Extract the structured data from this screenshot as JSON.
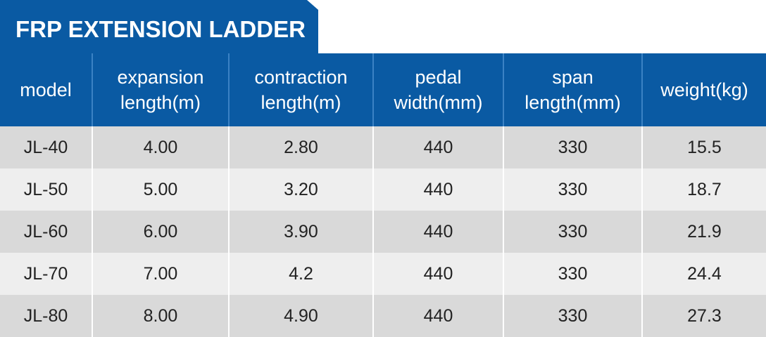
{
  "title": "FRP EXTENSION LADDER",
  "colors": {
    "header_bg": "#0a5aa3",
    "header_text": "#ffffff",
    "row_odd": "#d9d9d9",
    "row_even": "#eeeeee"
  },
  "columns": [
    {
      "lines": [
        "model"
      ]
    },
    {
      "lines": [
        "expansion",
        "length(m)"
      ]
    },
    {
      "lines": [
        "contraction",
        "length(m)"
      ]
    },
    {
      "lines": [
        "pedal",
        "width(mm)"
      ]
    },
    {
      "lines": [
        "span",
        "length(mm)"
      ]
    },
    {
      "lines": [
        "weight(kg)"
      ]
    }
  ],
  "rows": [
    [
      "JL-40",
      "4.00",
      "2.80",
      "440",
      "330",
      "15.5"
    ],
    [
      "JL-50",
      "5.00",
      "3.20",
      "440",
      "330",
      "18.7"
    ],
    [
      "JL-60",
      "6.00",
      "3.90",
      "440",
      "330",
      "21.9"
    ],
    [
      "JL-70",
      "7.00",
      "4.2",
      "440",
      "330",
      "24.4"
    ],
    [
      "JL-80",
      "8.00",
      "4.90",
      "440",
      "330",
      "27.3"
    ]
  ]
}
